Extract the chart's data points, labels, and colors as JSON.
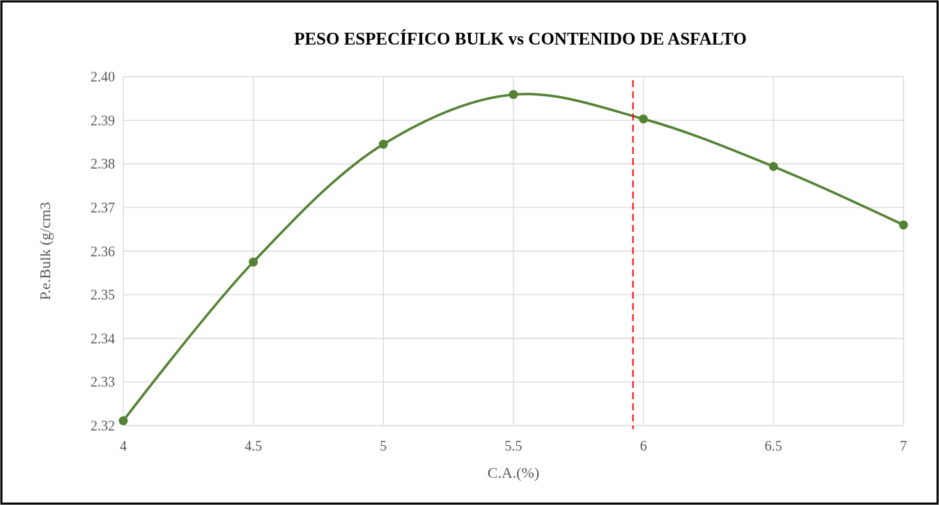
{
  "chart_data": {
    "type": "line",
    "title": "PESO ESPECÍFICO BULK vs CONTENIDO DE ASFALTO",
    "xlabel": "C.A.(%)",
    "ylabel": "P.e.Bulk (g/cm3",
    "x": [
      4,
      4.5,
      5,
      5.5,
      6,
      6.5,
      7
    ],
    "series": [
      {
        "color": "#548235",
        "values": [
          2.3211,
          2.3575,
          2.3845,
          2.3959,
          2.3903,
          2.3794,
          2.366
        ]
      }
    ],
    "xlim": [
      4,
      7
    ],
    "xticks": [
      4,
      4.5,
      5,
      5.5,
      6,
      6.5,
      7
    ],
    "ylim": [
      2.32,
      2.4
    ],
    "yticks": [
      2.32,
      2.33,
      2.34,
      2.35,
      2.36,
      2.37,
      2.38,
      2.39,
      {
        "value": 2.4,
        "label": "2.40"
      }
    ],
    "grid": true,
    "marker": "circle",
    "line_style": "solid",
    "ref_lines": [
      {
        "axis": "x",
        "value": 5.96,
        "color": "#ff0000",
        "line_style": "dashed"
      }
    ]
  }
}
